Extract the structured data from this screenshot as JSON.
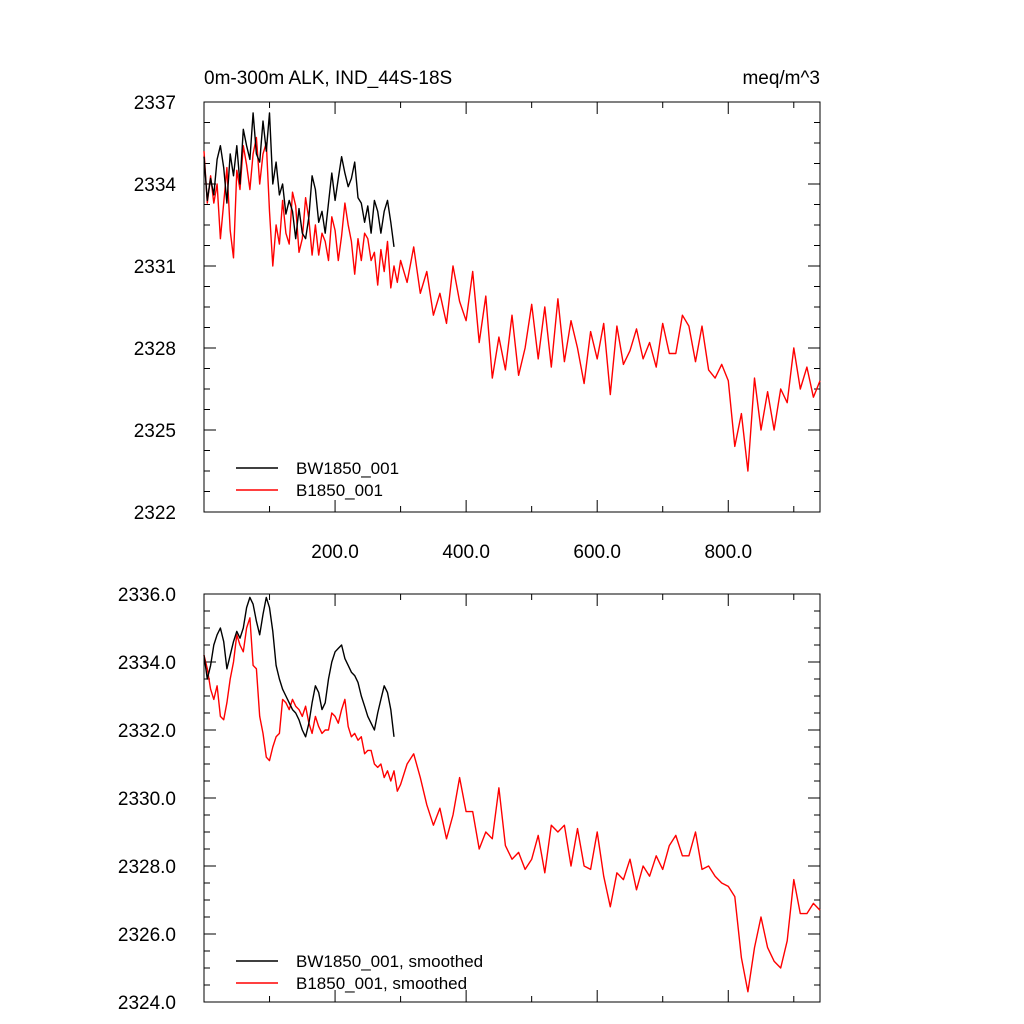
{
  "chart_data": [
    {
      "type": "line",
      "title_left": "0m-300m ALK, IND_44S-18S",
      "title_right": "meq/m^3",
      "xlim": [
        0,
        940
      ],
      "ylim": [
        2322,
        2337
      ],
      "yticks": [
        {
          "value": 2337,
          "label": "2337"
        },
        {
          "value": 2334,
          "label": "2334"
        },
        {
          "value": 2331,
          "label": "2331"
        },
        {
          "value": 2328,
          "label": "2328"
        },
        {
          "value": 2325,
          "label": "2325"
        },
        {
          "value": 2322,
          "label": "2322"
        }
      ],
      "xticks": [
        {
          "value": 200,
          "label": "200.0"
        },
        {
          "value": 400,
          "label": "400.0"
        },
        {
          "value": 600,
          "label": "600.0"
        },
        {
          "value": 800,
          "label": "800.0"
        }
      ],
      "legend": {
        "position": "bottom-left"
      },
      "series": [
        {
          "name": "BW1850_001",
          "color": "#000000",
          "x": [
            0,
            5,
            10,
            15,
            20,
            25,
            30,
            35,
            40,
            45,
            50,
            55,
            60,
            65,
            70,
            75,
            80,
            85,
            90,
            95,
            100,
            105,
            110,
            115,
            120,
            125,
            130,
            135,
            140,
            145,
            150,
            155,
            160,
            165,
            170,
            175,
            180,
            185,
            190,
            195,
            200,
            205,
            210,
            215,
            220,
            225,
            230,
            235,
            240,
            245,
            250,
            255,
            260,
            265,
            270,
            275,
            280,
            285,
            290
          ],
          "values": [
            2335.0,
            2333.4,
            2334.2,
            2333.6,
            2334.9,
            2335.4,
            2334.6,
            2333.3,
            2335.1,
            2334.3,
            2335.4,
            2334.0,
            2336.0,
            2335.4,
            2334.9,
            2336.6,
            2335.1,
            2334.8,
            2336.3,
            2335.2,
            2336.6,
            2334.0,
            2334.8,
            2333.6,
            2334.0,
            2332.9,
            2333.4,
            2333.0,
            2332.0,
            2333.1,
            2332.2,
            2332.0,
            2332.8,
            2334.3,
            2333.8,
            2332.6,
            2333.0,
            2332.2,
            2333.3,
            2334.4,
            2333.4,
            2334.2,
            2335.0,
            2334.4,
            2333.9,
            2334.2,
            2334.8,
            2333.5,
            2333.3,
            2332.6,
            2333.2,
            2332.2,
            2333.4,
            2333.0,
            2332.2,
            2333.0,
            2333.4,
            2332.6,
            2331.7
          ]
        },
        {
          "name": "B1850_001",
          "color": "#ff0000",
          "x": [
            0,
            5,
            10,
            15,
            20,
            25,
            30,
            35,
            40,
            45,
            50,
            55,
            60,
            65,
            70,
            75,
            80,
            85,
            90,
            95,
            100,
            105,
            110,
            115,
            120,
            125,
            130,
            135,
            140,
            145,
            150,
            155,
            160,
            165,
            170,
            175,
            180,
            185,
            190,
            195,
            200,
            205,
            210,
            215,
            220,
            225,
            230,
            235,
            240,
            245,
            250,
            255,
            260,
            265,
            270,
            275,
            280,
            285,
            290,
            295,
            300,
            310,
            320,
            330,
            340,
            350,
            360,
            370,
            380,
            390,
            400,
            410,
            420,
            430,
            440,
            450,
            460,
            470,
            480,
            490,
            500,
            510,
            520,
            530,
            540,
            550,
            560,
            570,
            580,
            590,
            600,
            610,
            620,
            630,
            640,
            650,
            660,
            670,
            680,
            690,
            700,
            710,
            720,
            730,
            740,
            750,
            760,
            770,
            780,
            790,
            800,
            810,
            820,
            830,
            840,
            850,
            860,
            870,
            880,
            890,
            900,
            910,
            920,
            930,
            940
          ],
          "values": [
            2335.2,
            2333.3,
            2334.3,
            2333.3,
            2334.0,
            2332.0,
            2333.3,
            2334.6,
            2332.3,
            2331.3,
            2334.5,
            2333.8,
            2335.4,
            2334.7,
            2333.8,
            2335.1,
            2335.7,
            2334.0,
            2335.1,
            2335.5,
            2333.0,
            2331.0,
            2332.5,
            2331.8,
            2333.4,
            2332.2,
            2331.8,
            2333.7,
            2333.2,
            2331.5,
            2332.0,
            2333.5,
            2332.7,
            2331.4,
            2332.5,
            2331.4,
            2332.2,
            2331.9,
            2331.2,
            2332.8,
            2332.3,
            2331.2,
            2332.1,
            2333.3,
            2332.5,
            2331.9,
            2330.7,
            2332.0,
            2331.2,
            2332.2,
            2332.0,
            2331.2,
            2331.5,
            2330.3,
            2331.6,
            2330.8,
            2331.9,
            2330.2,
            2331.0,
            2330.4,
            2331.2,
            2330.4,
            2331.7,
            2330.0,
            2330.8,
            2329.2,
            2330.0,
            2328.9,
            2331.0,
            2329.7,
            2329.0,
            2330.8,
            2328.2,
            2329.9,
            2326.9,
            2328.4,
            2327.2,
            2329.2,
            2327.0,
            2328.0,
            2329.6,
            2327.6,
            2329.5,
            2327.3,
            2329.8,
            2327.5,
            2329.0,
            2328.0,
            2326.7,
            2328.6,
            2327.6,
            2328.9,
            2326.3,
            2328.8,
            2327.4,
            2327.9,
            2328.7,
            2327.6,
            2328.2,
            2327.3,
            2328.9,
            2327.8,
            2327.8,
            2329.2,
            2328.8,
            2327.5,
            2328.8,
            2327.2,
            2326.9,
            2327.4,
            2326.8,
            2324.4,
            2325.6,
            2323.5,
            2326.9,
            2325.0,
            2326.4,
            2325.0,
            2326.5,
            2326.0,
            2328.0,
            2326.5,
            2327.3,
            2326.2,
            2326.8
          ]
        }
      ]
    },
    {
      "type": "line",
      "xlim": [
        0,
        940
      ],
      "ylim": [
        2324.0,
        2336.0
      ],
      "yticks": [
        {
          "value": 2336,
          "label": "2336.0"
        },
        {
          "value": 2334,
          "label": "2334.0"
        },
        {
          "value": 2332,
          "label": "2332.0"
        },
        {
          "value": 2330,
          "label": "2330.0"
        },
        {
          "value": 2328,
          "label": "2328.0"
        },
        {
          "value": 2326,
          "label": "2326.0"
        },
        {
          "value": 2324,
          "label": "2324.0"
        }
      ],
      "xticks": [],
      "legend": {
        "position": "bottom-left"
      },
      "series": [
        {
          "name": "BW1850_001, smoothed",
          "color": "#000000",
          "x": [
            0,
            5,
            10,
            15,
            20,
            25,
            30,
            35,
            40,
            45,
            50,
            55,
            60,
            65,
            70,
            75,
            80,
            85,
            90,
            95,
            100,
            105,
            110,
            115,
            120,
            125,
            130,
            135,
            140,
            145,
            150,
            155,
            160,
            165,
            170,
            175,
            180,
            185,
            190,
            195,
            200,
            205,
            210,
            215,
            220,
            225,
            230,
            235,
            240,
            245,
            250,
            255,
            260,
            265,
            270,
            275,
            280,
            285,
            290
          ],
          "values": [
            2334.2,
            2333.5,
            2333.9,
            2334.5,
            2334.8,
            2335.0,
            2334.6,
            2333.8,
            2334.2,
            2334.6,
            2334.9,
            2334.7,
            2335.0,
            2335.6,
            2335.9,
            2335.7,
            2335.2,
            2334.8,
            2335.4,
            2335.9,
            2335.6,
            2334.9,
            2333.9,
            2333.5,
            2333.2,
            2333.0,
            2332.8,
            2332.6,
            2332.5,
            2332.3,
            2332.0,
            2331.8,
            2332.2,
            2332.8,
            2333.3,
            2333.1,
            2332.6,
            2332.8,
            2333.5,
            2334.0,
            2334.3,
            2334.4,
            2334.5,
            2334.1,
            2333.9,
            2333.7,
            2333.6,
            2333.4,
            2333.0,
            2332.7,
            2332.4,
            2332.2,
            2332.0,
            2332.5,
            2332.9,
            2333.3,
            2333.1,
            2332.6,
            2331.8
          ]
        },
        {
          "name": "B1850_001, smoothed",
          "color": "#ff0000",
          "x": [
            0,
            5,
            10,
            15,
            20,
            25,
            30,
            35,
            40,
            45,
            50,
            55,
            60,
            65,
            70,
            75,
            80,
            85,
            90,
            95,
            100,
            105,
            110,
            115,
            120,
            125,
            130,
            135,
            140,
            145,
            150,
            155,
            160,
            165,
            170,
            175,
            180,
            185,
            190,
            195,
            200,
            205,
            210,
            215,
            220,
            225,
            230,
            235,
            240,
            245,
            250,
            255,
            260,
            265,
            270,
            275,
            280,
            285,
            290,
            295,
            300,
            310,
            320,
            330,
            340,
            350,
            360,
            370,
            380,
            390,
            400,
            410,
            420,
            430,
            440,
            450,
            460,
            470,
            480,
            490,
            500,
            510,
            520,
            530,
            540,
            550,
            560,
            570,
            580,
            590,
            600,
            610,
            620,
            630,
            640,
            650,
            660,
            670,
            680,
            690,
            700,
            710,
            720,
            730,
            740,
            750,
            760,
            770,
            780,
            790,
            800,
            810,
            820,
            830,
            840,
            850,
            860,
            870,
            880,
            890,
            900,
            910,
            920,
            930,
            940
          ],
          "values": [
            2334.2,
            2333.8,
            2333.2,
            2332.9,
            2333.3,
            2332.4,
            2332.3,
            2332.8,
            2333.5,
            2334.0,
            2334.8,
            2334.5,
            2334.3,
            2335.0,
            2335.3,
            2333.9,
            2333.8,
            2332.4,
            2331.9,
            2331.2,
            2331.1,
            2331.5,
            2331.8,
            2331.9,
            2332.9,
            2332.8,
            2332.6,
            2332.9,
            2332.7,
            2332.6,
            2332.4,
            2332.7,
            2332.2,
            2331.9,
            2332.4,
            2332.1,
            2331.9,
            2332.0,
            2332.0,
            2332.5,
            2332.4,
            2332.2,
            2332.6,
            2332.9,
            2332.1,
            2331.8,
            2331.9,
            2331.7,
            2331.8,
            2331.3,
            2331.4,
            2331.4,
            2331.0,
            2330.9,
            2331.0,
            2330.6,
            2330.8,
            2330.5,
            2330.8,
            2330.2,
            2330.4,
            2331.0,
            2331.3,
            2330.6,
            2329.8,
            2329.2,
            2329.7,
            2328.8,
            2329.5,
            2330.6,
            2329.6,
            2329.6,
            2328.5,
            2329.0,
            2328.8,
            2330.3,
            2328.6,
            2328.2,
            2328.4,
            2327.9,
            2328.2,
            2328.9,
            2327.8,
            2329.2,
            2329.0,
            2329.2,
            2328.0,
            2329.1,
            2328.0,
            2327.9,
            2329.0,
            2327.7,
            2326.8,
            2327.8,
            2327.6,
            2328.2,
            2327.3,
            2328.0,
            2327.7,
            2328.3,
            2327.9,
            2328.6,
            2328.9,
            2328.3,
            2328.3,
            2329.0,
            2327.9,
            2328.0,
            2327.7,
            2327.5,
            2327.4,
            2327.1,
            2325.3,
            2324.3,
            2325.6,
            2326.5,
            2325.6,
            2325.2,
            2325.0,
            2325.8,
            2327.6,
            2326.6,
            2326.6,
            2326.9,
            2326.7
          ]
        }
      ]
    }
  ]
}
